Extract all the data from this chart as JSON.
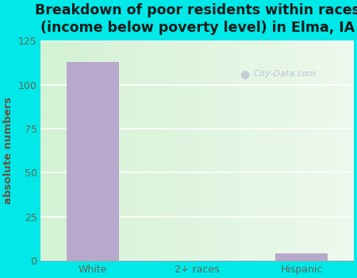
{
  "categories": [
    "White",
    "2+ races",
    "Hispanic"
  ],
  "values": [
    113,
    0,
    4
  ],
  "bar_color": "#b8a8cc",
  "title": "Breakdown of poor residents within races\n(income below poverty level) in Elma, IA",
  "ylabel": "absolute numbers",
  "ylim": [
    0,
    125
  ],
  "yticks": [
    0,
    25,
    50,
    75,
    100,
    125
  ],
  "background_outer": "#00e8e8",
  "background_inner_color1": "#d4f2d4",
  "background_inner_color2": "#f0faf0",
  "grid_color": "#ffffff",
  "title_fontsize": 12.5,
  "ylabel_fontsize": 9.5,
  "tick_fontsize": 9,
  "tick_color": "#666655",
  "ylabel_color": "#665544",
  "title_color": "#1a1a1a",
  "watermark": "City-Data.com"
}
